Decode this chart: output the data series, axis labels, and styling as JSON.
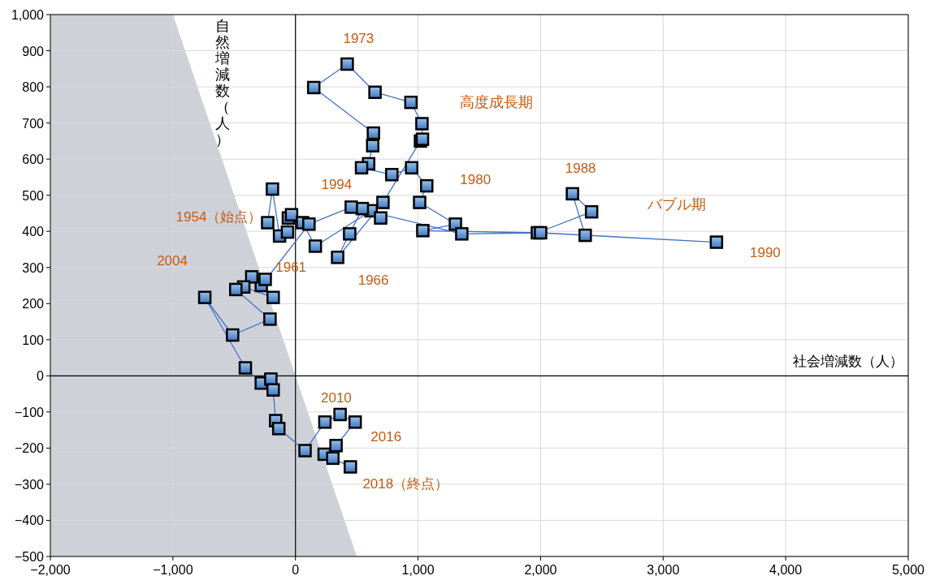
{
  "chart_data": {
    "type": "line",
    "xlabel": "社会増減数（人）",
    "ylabel": "自然増減数（人）",
    "grid": true,
    "line_style": "solid",
    "xlim": [
      -2000,
      5000
    ],
    "ylim": [
      -500,
      1000
    ],
    "xticks": [
      {
        "value": -2000,
        "label": "−2,000"
      },
      {
        "value": -1000,
        "label": "−1,000"
      },
      0,
      {
        "value": 1000,
        "label": "1,000"
      },
      {
        "value": 2000,
        "label": "2,000"
      },
      {
        "value": 3000,
        "label": "3,000"
      },
      {
        "value": 4000,
        "label": "4,000"
      },
      {
        "value": 5000,
        "label": "5,000"
      }
    ],
    "yticks": [
      {
        "value": -500,
        "label": "−500"
      },
      {
        "value": -400,
        "label": "−400"
      },
      {
        "value": -300,
        "label": "−300"
      },
      {
        "value": -200,
        "label": "−200"
      },
      {
        "value": -100,
        "label": "−100"
      },
      0,
      100,
      200,
      300,
      400,
      500,
      600,
      700,
      800,
      900,
      {
        "value": 1000,
        "label": "1,000"
      }
    ],
    "series": [
      {
        "type": "area",
        "color": "#ced1d8",
        "x": [
          -2000,
          -2000,
          -1000,
          500
        ],
        "values": [
          -500,
          1000,
          1000,
          -500
        ]
      },
      {
        "color": "#4472c4",
        "marker": "square",
        "x": [
          -227,
          -188,
          -130,
          -65,
          -58,
          -32,
          58,
          162,
          617,
          695,
          545,
          442,
          344,
          714,
          1020,
          1036,
          1032,
          942,
          649,
          422,
          149,
          636,
          630,
          597,
          539,
          786,
          948,
          1071,
          1013,
          1305,
          1039,
          1974,
          2416,
          2260,
          2364,
          3435,
          2000,
          1357,
          455,
          110,
          -279,
          -247,
          -357,
          -182,
          -422,
          -487,
          -208,
          -513,
          -740,
          -409,
          -279,
          -201,
          -182,
          -162,
          -136,
          78,
          240,
          364,
          487,
          331,
          234,
          305,
          448
        ],
        "values": [
          424,
          517,
          387,
          398,
          437,
          446,
          424,
          359,
          457,
          437,
          463,
          393,
          328,
          480,
          650,
          655,
          698,
          757,
          785,
          863,
          798,
          672,
          637,
          587,
          576,
          557,
          576,
          526,
          480,
          420,
          402,
          396,
          454,
          504,
          389,
          370,
          396,
          393,
          467,
          420,
          250,
          267,
          274,
          217,
          246,
          239,
          157,
          113,
          217,
          22,
          -20,
          -9,
          -39,
          -124,
          -146,
          -207,
          -128,
          -107,
          -128,
          -193,
          -217,
          -228,
          -252
        ]
      }
    ],
    "annotations": [
      {
        "text": "1973",
        "x": 422,
        "y": 863
      },
      {
        "text": "1980",
        "x": 1071,
        "y": 526
      },
      {
        "text": "1988",
        "x": 2260,
        "y": 504
      },
      {
        "text": "1990",
        "x": 3435,
        "y": 370
      },
      {
        "text": "1994",
        "x": 455,
        "y": 467
      },
      {
        "text": "1954（始点）",
        "x": -227,
        "y": 424
      },
      {
        "text": "1961",
        "x": 162,
        "y": 359
      },
      {
        "text": "1966",
        "x": 344,
        "y": 328
      },
      {
        "text": "2004",
        "x": -740,
        "y": 217
      },
      {
        "text": "2010",
        "x": 240,
        "y": -128
      },
      {
        "text": "2016",
        "x": 487,
        "y": -128
      },
      {
        "text": "2018（終点）",
        "x": 448,
        "y": -252
      },
      "高度成長期",
      "バブル期"
    ]
  }
}
